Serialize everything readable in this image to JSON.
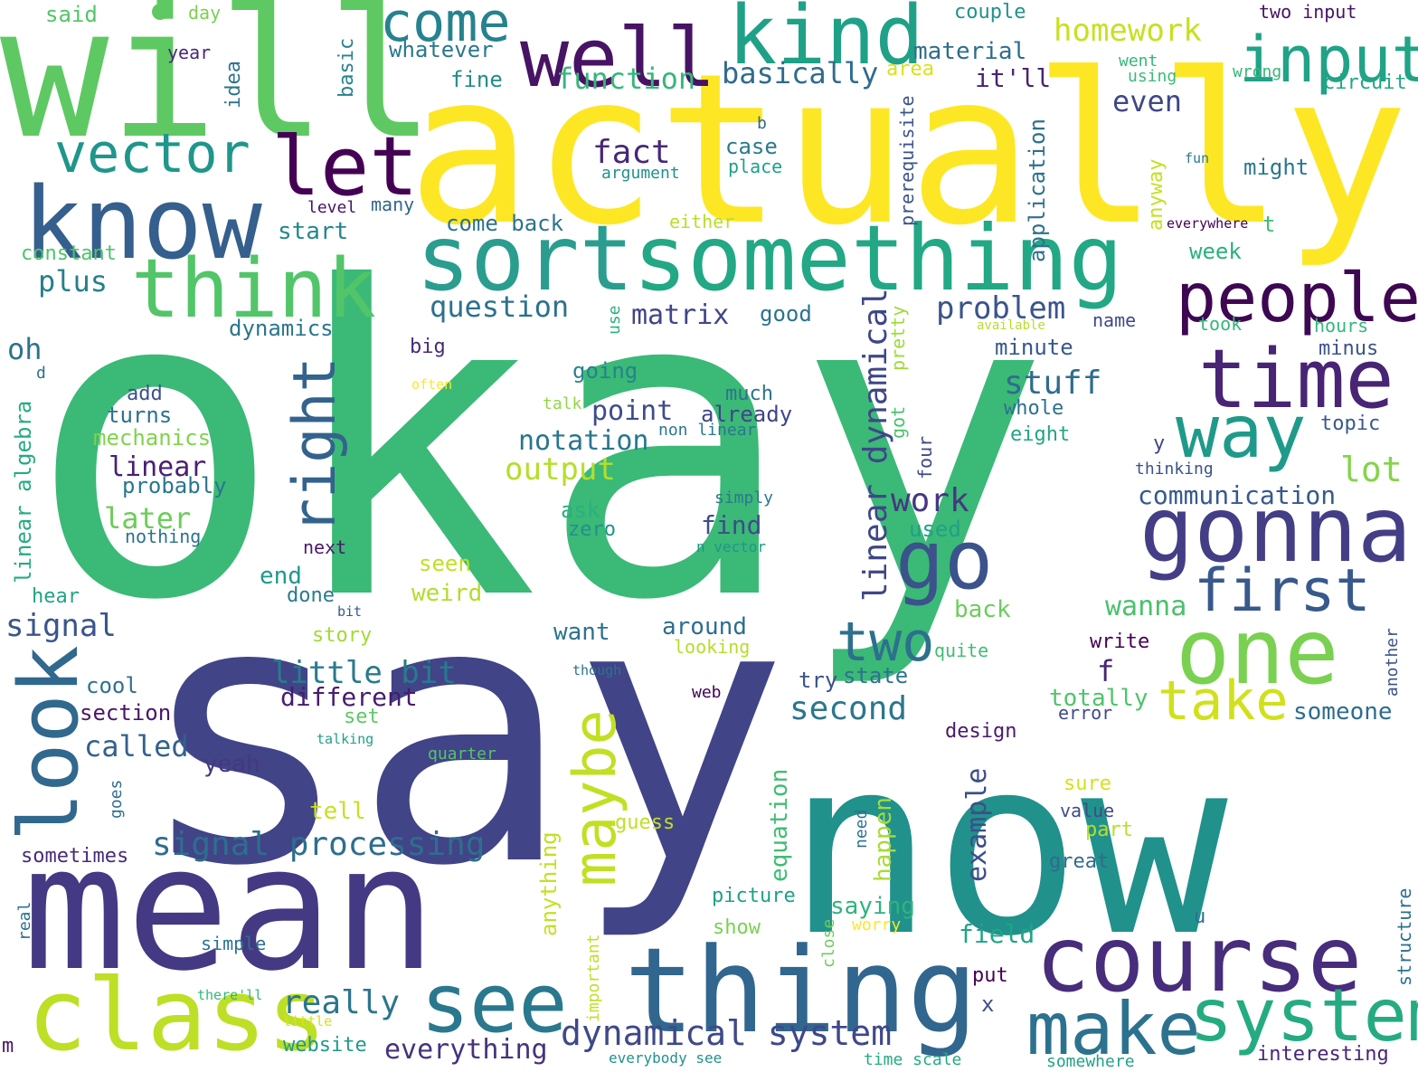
{
  "words": [
    {
      "text": "okay",
      "color": "#3bb977",
      "size": 0.3
    },
    {
      "text": "say",
      "color": "#414487",
      "size": 0.24
    },
    {
      "text": "actually",
      "color": "#fde725",
      "size": 0.2
    },
    {
      "text": "now",
      "color": "#21918c",
      "size": 0.2
    },
    {
      "text": "will",
      "color": "#5ec962",
      "size": 0.16
    },
    {
      "text": "mean",
      "color": "#443983",
      "size": 0.14
    },
    {
      "text": "sort",
      "color": "#2a9d8f",
      "size": 0.1
    },
    {
      "text": "something",
      "color": "#22a884",
      "size": 0.1
    },
    {
      "text": "know",
      "color": "#355f8d",
      "size": 0.09
    },
    {
      "text": "thing",
      "color": "#31668e",
      "size": 0.09
    },
    {
      "text": "class",
      "color": "#bddf26",
      "size": 0.08
    },
    {
      "text": "course",
      "color": "#472d7b",
      "size": 0.08
    },
    {
      "text": "gonna",
      "color": "#433e85",
      "size": 0.08
    },
    {
      "text": "one",
      "color": "#7ad151",
      "size": 0.07
    },
    {
      "text": "make",
      "color": "#2c728e",
      "size": 0.07
    },
    {
      "text": "system",
      "color": "#25ab82",
      "size": 0.07
    },
    {
      "text": "see",
      "color": "#2a788e",
      "size": 0.07
    },
    {
      "text": "well",
      "color": "#471365",
      "size": 0.07
    },
    {
      "text": "kind",
      "color": "#1fa188",
      "size": 0.07
    },
    {
      "text": "input",
      "color": "#20a386",
      "size": 0.06
    },
    {
      "text": "let",
      "color": "#440154",
      "size": 0.06
    },
    {
      "text": "think",
      "color": "#52c569",
      "size": 0.06
    },
    {
      "text": "people",
      "color": "#3e0751",
      "size": 0.06
    },
    {
      "text": "time",
      "color": "#482475",
      "size": 0.06
    },
    {
      "text": "way",
      "color": "#1f9a8a",
      "size": 0.06
    },
    {
      "text": "go",
      "color": "#3b528b",
      "size": 0.06
    },
    {
      "text": "look",
      "color": "#31688e",
      "size": 0.06
    },
    {
      "text": "right",
      "color": "#33638d",
      "size": 0.05
    },
    {
      "text": "maybe",
      "color": "#c2df23",
      "size": 0.05
    },
    {
      "text": "first",
      "color": "#38598c",
      "size": 0.05
    },
    {
      "text": "two",
      "color": "#2d708e",
      "size": 0.05
    },
    {
      "text": "take",
      "color": "#d0e11c",
      "size": 0.05
    },
    {
      "text": "vector",
      "color": "#1f968b",
      "size": 0.05
    },
    {
      "text": "come",
      "color": "#26828e",
      "size": 0.05
    },
    {
      "text": "linear dynamical",
      "color": "#3f4788",
      "size": 0.035
    },
    {
      "text": "dynamical system",
      "color": "#3f4889",
      "size": 0.035
    },
    {
      "text": "signal processing",
      "color": "#2e6e8e",
      "size": 0.03
    },
    {
      "text": "little bit",
      "color": "#297a8e",
      "size": 0.03
    },
    {
      "text": "matrix",
      "color": "#404688",
      "size": 0.03
    },
    {
      "text": "problem",
      "color": "#3a548c",
      "size": 0.03
    },
    {
      "text": "question",
      "color": "#2d718e",
      "size": 0.03
    },
    {
      "text": "example",
      "color": "#3c4f8a",
      "size": 0.03
    },
    {
      "text": "output",
      "color": "#b5de2b",
      "size": 0.03
    },
    {
      "text": "homework",
      "color": "#c8e020",
      "size": 0.03
    },
    {
      "text": "communication",
      "color": "#37598c",
      "size": 0.025
    },
    {
      "text": "everything",
      "color": "#46327e",
      "size": 0.025
    },
    {
      "text": "different",
      "color": "#481c6e",
      "size": 0.025
    },
    {
      "text": "function",
      "color": "#35b779",
      "size": 0.025
    },
    {
      "text": "basically",
      "color": "#2f6b8e",
      "size": 0.025
    },
    {
      "text": "really",
      "color": "#2b758e",
      "size": 0.03
    },
    {
      "text": "stuff",
      "color": "#2f6c8e",
      "size": 0.03
    },
    {
      "text": "work",
      "color": "#453781",
      "size": 0.03
    },
    {
      "text": "second",
      "color": "#2a778e",
      "size": 0.03
    },
    {
      "text": "fact",
      "color": "#482878",
      "size": 0.03
    },
    {
      "text": "lot",
      "color": "#84d44b",
      "size": 0.03
    },
    {
      "text": "point",
      "color": "#3e4c8a",
      "size": 0.025
    },
    {
      "text": "notation",
      "color": "#2a768e",
      "size": 0.025
    },
    {
      "text": "signal",
      "color": "#39558c",
      "size": 0.025
    },
    {
      "text": "called",
      "color": "#33628d",
      "size": 0.025
    },
    {
      "text": "linear",
      "color": "#482173",
      "size": 0.025
    },
    {
      "text": "later",
      "color": "#6ccd5a",
      "size": 0.025
    },
    {
      "text": "plus",
      "color": "#277f8e",
      "size": 0.025
    },
    {
      "text": "oh",
      "color": "#2c738e",
      "size": 0.025
    },
    {
      "text": "wanna",
      "color": "#4ac16d",
      "size": 0.025
    },
    {
      "text": "totally",
      "color": "#4fc46a",
      "size": 0.02
    },
    {
      "text": "someone",
      "color": "#2e6d8e",
      "size": 0.02
    },
    {
      "text": "material",
      "color": "#2f6c8e",
      "size": 0.02
    },
    {
      "text": "whatever",
      "color": "#2a788e",
      "size": 0.02
    },
    {
      "text": "equation",
      "color": "#40bd72",
      "size": 0.02
    },
    {
      "text": "happen",
      "color": "#a8db34",
      "size": 0.02
    },
    {
      "text": "anything",
      "color": "#c5e021",
      "size": 0.02
    },
    {
      "text": "field",
      "color": "#20a486",
      "size": 0.02
    },
    {
      "text": "saying",
      "color": "#2fb47c",
      "size": 0.02
    },
    {
      "text": "interesting",
      "color": "#482677",
      "size": 0.017
    },
    {
      "text": "mechanics",
      "color": "#7fd34e",
      "size": 0.017
    },
    {
      "text": "sometimes",
      "color": "#472c7a",
      "size": 0.017
    },
    {
      "text": "dynamics",
      "color": "#2a768e",
      "size": 0.017
    },
    {
      "text": "constant",
      "color": "#4ec36b",
      "size": 0.017
    },
    {
      "text": "linear algebra",
      "color": "#25ab82",
      "size": 0.017
    },
    {
      "text": "prerequisite",
      "color": "#3a538b",
      "size": 0.015
    },
    {
      "text": "application",
      "color": "#2d718e",
      "size": 0.017
    },
    {
      "text": "probably",
      "color": "#2a778e",
      "size": 0.017
    },
    {
      "text": "already",
      "color": "#404588",
      "size": 0.017
    },
    {
      "text": "turns",
      "color": "#2c718e",
      "size": 0.017
    },
    {
      "text": "section",
      "color": "#481668",
      "size": 0.017
    },
    {
      "text": "minute",
      "color": "#38588c",
      "size": 0.017
    },
    {
      "text": "start",
      "color": "#23888e",
      "size": 0.017
    },
    {
      "text": "even",
      "color": "#3f4788",
      "size": 0.02
    },
    {
      "text": "it'll",
      "color": "#482475",
      "size": 0.02
    },
    {
      "text": "fine",
      "color": "#228c8d",
      "size": 0.017
    },
    {
      "text": "good",
      "color": "#2c728e",
      "size": 0.017
    },
    {
      "text": "going",
      "color": "#26828e",
      "size": 0.017
    },
    {
      "text": "case",
      "color": "#297b8e",
      "size": 0.017
    },
    {
      "text": "place",
      "color": "#1f9f88",
      "size": 0.015
    },
    {
      "text": "argument",
      "color": "#21918c",
      "size": 0.013
    },
    {
      "text": "come back",
      "color": "#2c738e",
      "size": 0.017
    },
    {
      "text": "week",
      "color": "#2ab07f",
      "size": 0.017
    },
    {
      "text": "might",
      "color": "#2a778e",
      "size": 0.017
    },
    {
      "text": "name",
      "color": "#3e4989",
      "size": 0.015
    },
    {
      "text": "took",
      "color": "#35b779",
      "size": 0.015
    },
    {
      "text": "hours",
      "color": "#35b779",
      "size": 0.015
    },
    {
      "text": "minus",
      "color": "#3b528b",
      "size": 0.015
    },
    {
      "text": "topic",
      "color": "#38598c",
      "size": 0.015
    },
    {
      "text": "whole",
      "color": "#2c728e",
      "size": 0.015
    },
    {
      "text": "eight",
      "color": "#21a685",
      "size": 0.015
    },
    {
      "text": "thinking",
      "color": "#3b528b",
      "size": 0.013
    },
    {
      "text": "pretty",
      "color": "#9fda3a",
      "size": 0.015
    },
    {
      "text": "got",
      "color": "#4ac16d",
      "size": 0.015
    },
    {
      "text": "four",
      "color": "#3e4a89",
      "size": 0.015
    },
    {
      "text": "anyway",
      "color": "#c5e021",
      "size": 0.015
    },
    {
      "text": "either",
      "color": "#b8de29",
      "size": 0.013
    },
    {
      "text": "many",
      "color": "#32658e",
      "size": 0.013
    },
    {
      "text": "level",
      "color": "#471365",
      "size": 0.013
    },
    {
      "text": "basic",
      "color": "#26828e",
      "size": 0.015
    },
    {
      "text": "idea",
      "color": "#2c738e",
      "size": 0.015
    },
    {
      "text": "year",
      "color": "#482878",
      "size": 0.013
    },
    {
      "text": "day",
      "color": "#7ad151",
      "size": 0.013
    },
    {
      "text": "said",
      "color": "#52c569",
      "size": 0.015
    },
    {
      "text": "couple",
      "color": "#20928c",
      "size": 0.015
    },
    {
      "text": "two input",
      "color": "#471365",
      "size": 0.013
    },
    {
      "text": "went",
      "color": "#35b779",
      "size": 0.013
    },
    {
      "text": "using",
      "color": "#3bbb75",
      "size": 0.013
    },
    {
      "text": "wrong",
      "color": "#35b779",
      "size": 0.013
    },
    {
      "text": "circuit",
      "color": "#22a785",
      "size": 0.015
    },
    {
      "text": "area",
      "color": "#d8e219",
      "size": 0.015
    },
    {
      "text": "b",
      "color": "#31668e",
      "size": 0.013
    },
    {
      "text": "fun",
      "color": "#2a788e",
      "size": 0.011
    },
    {
      "text": "everywhere",
      "color": "#440154",
      "size": 0.011
    },
    {
      "text": "t",
      "color": "#40bd72",
      "size": 0.017
    },
    {
      "text": "available",
      "color": "#b5de2b",
      "size": 0.01
    },
    {
      "text": "use",
      "color": "#2ab07f",
      "size": 0.013
    },
    {
      "text": "big",
      "color": "#472a7a",
      "size": 0.015
    },
    {
      "text": "add",
      "color": "#3b528b",
      "size": 0.015
    },
    {
      "text": "d",
      "color": "#2c718e",
      "size": 0.013
    },
    {
      "text": "often",
      "color": "#fde725",
      "size": 0.011
    },
    {
      "text": "talk",
      "color": "#90d743",
      "size": 0.013
    },
    {
      "text": "much",
      "color": "#2c738e",
      "size": 0.015
    },
    {
      "text": "non linear",
      "color": "#2a778e",
      "size": 0.013
    },
    {
      "text": "ask",
      "color": "#2ab07f",
      "size": 0.015
    },
    {
      "text": "zero",
      "color": "#21918c",
      "size": 0.015
    },
    {
      "text": "simply",
      "color": "#2a788e",
      "size": 0.013
    },
    {
      "text": "find",
      "color": "#3e4c8a",
      "size": 0.017
    },
    {
      "text": "n vector",
      "color": "#1f968b",
      "size": 0.011
    },
    {
      "text": "used",
      "color": "#1fa188",
      "size": 0.015
    },
    {
      "text": "y",
      "color": "#3f4788",
      "size": 0.015
    },
    {
      "text": "nothing",
      "color": "#2c728e",
      "size": 0.015
    },
    {
      "text": "next",
      "color": "#481a6c",
      "size": 0.015
    },
    {
      "text": "end",
      "color": "#1f998a",
      "size": 0.017
    },
    {
      "text": "done",
      "color": "#297a8e",
      "size": 0.015
    },
    {
      "text": "seen",
      "color": "#c2df23",
      "size": 0.015
    },
    {
      "text": "weird",
      "color": "#b2dd2d",
      "size": 0.017
    },
    {
      "text": "hear",
      "color": "#20a486",
      "size": 0.015
    },
    {
      "text": "back",
      "color": "#6ccd5a",
      "size": 0.017
    },
    {
      "text": "bit",
      "color": "#38598c",
      "size": 0.011
    },
    {
      "text": "story",
      "color": "#a2da37",
      "size": 0.015
    },
    {
      "text": "around",
      "color": "#2e6e8e",
      "size": 0.017
    },
    {
      "text": "want",
      "color": "#2c738e",
      "size": 0.017
    },
    {
      "text": "looking",
      "color": "#b5de2b",
      "size": 0.013
    },
    {
      "text": "quite",
      "color": "#40bd72",
      "size": 0.013
    },
    {
      "text": "write",
      "color": "#440154",
      "size": 0.015
    },
    {
      "text": "f",
      "color": "#482475",
      "size": 0.02
    },
    {
      "text": "another",
      "color": "#3b528b",
      "size": 0.013
    },
    {
      "text": "though",
      "color": "#2c728e",
      "size": 0.011
    },
    {
      "text": "try",
      "color": "#3b528b",
      "size": 0.015
    },
    {
      "text": "state",
      "color": "#2c728e",
      "size": 0.015
    },
    {
      "text": "cool",
      "color": "#2c728e",
      "size": 0.015
    },
    {
      "text": "web",
      "color": "#440154",
      "size": 0.013
    },
    {
      "text": "error",
      "color": "#3e4a89",
      "size": 0.013
    },
    {
      "text": "set",
      "color": "#5ec962",
      "size": 0.015
    },
    {
      "text": "talking",
      "color": "#1fa188",
      "size": 0.011
    },
    {
      "text": "design",
      "color": "#481b6d",
      "size": 0.015
    },
    {
      "text": "quarter",
      "color": "#52c569",
      "size": 0.013
    },
    {
      "text": "yeah",
      "color": "#453781",
      "size": 0.017
    },
    {
      "text": "goes",
      "color": "#2f6c8e",
      "size": 0.013
    },
    {
      "text": "tell",
      "color": "#c8e020",
      "size": 0.017
    },
    {
      "text": "sure",
      "color": "#d2e21b",
      "size": 0.015
    },
    {
      "text": "guess",
      "color": "#c2df23",
      "size": 0.015
    },
    {
      "text": "need",
      "color": "#2c718e",
      "size": 0.013
    },
    {
      "text": "value",
      "color": "#3e4c8a",
      "size": 0.013
    },
    {
      "text": "part",
      "color": "#b8de29",
      "size": 0.015
    },
    {
      "text": "great",
      "color": "#2f6c8e",
      "size": 0.015
    },
    {
      "text": "real",
      "color": "#2c728e",
      "size": 0.013
    },
    {
      "text": "important",
      "color": "#c2df23",
      "size": 0.013
    },
    {
      "text": "picture",
      "color": "#1fa188",
      "size": 0.015
    },
    {
      "text": "worry",
      "color": "#fde725",
      "size": 0.013
    },
    {
      "text": "show",
      "color": "#7ad151",
      "size": 0.015
    },
    {
      "text": "u",
      "color": "#2c718e",
      "size": 0.015
    },
    {
      "text": "structure",
      "color": "#2c718e",
      "size": 0.013
    },
    {
      "text": "simple",
      "color": "#2c728e",
      "size": 0.013
    },
    {
      "text": "close",
      "color": "#6ccd5a",
      "size": 0.013
    },
    {
      "text": "put",
      "color": "#440154",
      "size": 0.015
    },
    {
      "text": "there'll",
      "color": "#35b779",
      "size": 0.011
    },
    {
      "text": "little",
      "color": "#d8e219",
      "size": 0.011
    },
    {
      "text": "x",
      "color": "#3e4c8a",
      "size": 0.015
    },
    {
      "text": "m",
      "color": "#481668",
      "size": 0.015
    },
    {
      "text": "website",
      "color": "#1f9a8a",
      "size": 0.015
    },
    {
      "text": "everybody see",
      "color": "#21918c",
      "size": 0.011
    },
    {
      "text": "time scale",
      "color": "#25ab82",
      "size": 0.013
    },
    {
      "text": "somewhere",
      "color": "#20a386",
      "size": 0.013
    }
  ]
}
